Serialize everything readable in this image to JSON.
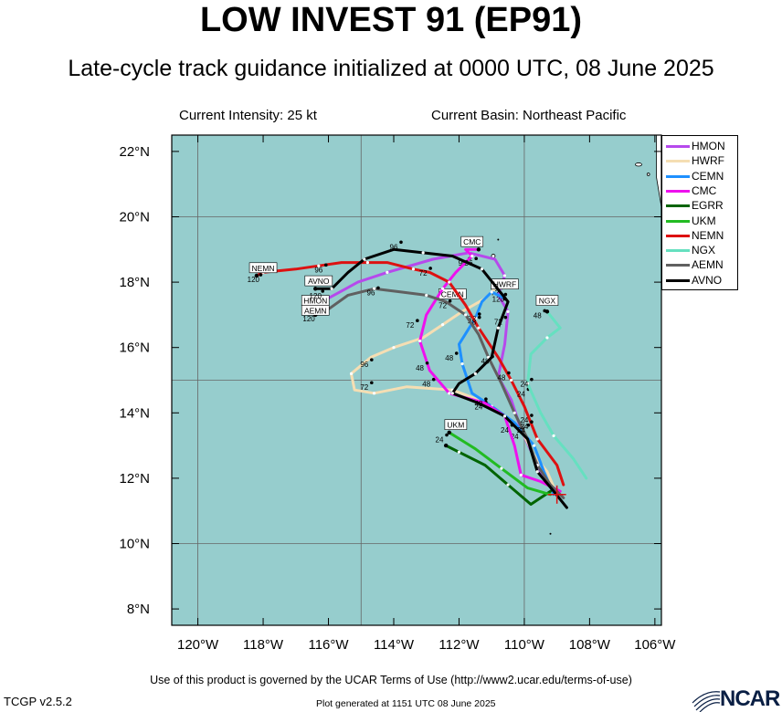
{
  "header": {
    "title": "LOW INVEST 91 (EP91)",
    "subtitle": "Late-cycle track guidance initialized at 0000 UTC, 08 June 2025",
    "current_intensity": "Current Intensity: 25 kt",
    "current_basin": "Current Basin: Northeast Pacific"
  },
  "footer": {
    "terms": "Use of this product is governed by the UCAR Terms of Use (http://www2.ucar.edu/terms-of-use)",
    "version": "TCGP v2.5.2",
    "generated": "Plot generated at 1151 UTC   08 June 2025",
    "logo_text": "NCAR"
  },
  "colors": {
    "ocean": "#96cdcd",
    "land": "#ffffff",
    "grid": "#666666"
  },
  "map": {
    "lon_range": [
      -120.8,
      -105.8
    ],
    "lat_range": [
      7.5,
      22.5
    ],
    "lon_ticks": [
      -120,
      -118,
      -116,
      -114,
      -112,
      -110,
      -108,
      -106
    ],
    "lat_ticks": [
      8,
      10,
      12,
      14,
      16,
      18,
      20,
      22
    ],
    "lon_tick_labels": [
      "120°W",
      "118°W",
      "116°W",
      "114°W",
      "112°W",
      "110°W",
      "108°W",
      "106°W"
    ],
    "lat_tick_labels": [
      "8°N",
      "10°N",
      "12°N",
      "14°N",
      "16°N",
      "18°N",
      "20°N",
      "22°N"
    ],
    "grid_lons": [
      -120,
      -115,
      -110
    ],
    "grid_lats": [
      10,
      15,
      20
    ],
    "initial_position": [
      -109.0,
      11.5
    ]
  },
  "legend": [
    {
      "name": "HMON",
      "color": "#b649ec"
    },
    {
      "name": "HWRF",
      "color": "#f5deb3"
    },
    {
      "name": "CEMN",
      "color": "#1e90ff"
    },
    {
      "name": "CMC",
      "color": "#ee11ee"
    },
    {
      "name": "EGRR",
      "color": "#006400"
    },
    {
      "name": "UKM",
      "color": "#22bb22"
    },
    {
      "name": "NEMN",
      "color": "#dd1111"
    },
    {
      "name": "NGX",
      "color": "#66e0c0"
    },
    {
      "name": "AEMN",
      "color": "#606060"
    },
    {
      "name": "AVNO",
      "color": "#000000"
    }
  ],
  "tracks": [
    {
      "model": "HMON",
      "color": "#b649ec",
      "points": [
        [
          -109.0,
          11.5
        ],
        [
          -109.5,
          12.2
        ],
        [
          -110.1,
          13.5
        ],
        [
          -110.4,
          14.4
        ],
        [
          -110.8,
          15.1
        ],
        [
          -110.6,
          16.1
        ],
        [
          -110.5,
          17.1
        ],
        [
          -110.8,
          17.6
        ],
        [
          -110.6,
          18.2
        ],
        [
          -110.9,
          18.7
        ],
        [
          -111.7,
          18.9
        ],
        [
          -112.8,
          18.7
        ],
        [
          -114.2,
          18.3
        ],
        [
          -115.1,
          18.0
        ],
        [
          -116.2,
          17.4
        ],
        [
          -116.4,
          17.2
        ]
      ],
      "labels": [
        {
          "pos": [
            -110.0,
            13.7
          ],
          "text": "24"
        },
        {
          "pos": [
            -111.2,
            15.5
          ],
          "text": "48"
        },
        {
          "pos": [
            -110.9,
            17.6
          ],
          "text": "72"
        },
        {
          "pos": [
            -111.9,
            18.5
          ],
          "text": "96"
        }
      ],
      "tag": {
        "pos": [
          -116.4,
          17.4
        ],
        "text": "HMON"
      }
    },
    {
      "model": "HWRF",
      "color": "#f5deb3",
      "points": [
        [
          -109.0,
          11.5
        ],
        [
          -109.3,
          12.2
        ],
        [
          -109.7,
          12.7
        ],
        [
          -110.1,
          13.5
        ],
        [
          -110.6,
          13.9
        ],
        [
          -111.4,
          14.4
        ],
        [
          -112.2,
          14.7
        ],
        [
          -113.6,
          14.8
        ],
        [
          -114.6,
          14.6
        ],
        [
          -115.2,
          14.7
        ],
        [
          -115.3,
          15.2
        ],
        [
          -114.7,
          15.7
        ],
        [
          -114.0,
          16.0
        ],
        [
          -113.1,
          16.3
        ],
        [
          -112.5,
          16.7
        ],
        [
          -111.9,
          17.1
        ],
        [
          -111.2,
          17.5
        ],
        [
          -110.8,
          17.9
        ]
      ],
      "labels": [
        {
          "pos": [
            -110.3,
            13.2
          ],
          "text": "24"
        },
        {
          "pos": [
            -113.0,
            14.8
          ],
          "text": "48"
        },
        {
          "pos": [
            -114.9,
            14.7
          ],
          "text": "72"
        },
        {
          "pos": [
            -114.9,
            15.4
          ],
          "text": "96"
        },
        {
          "pos": [
            -110.8,
            17.4
          ],
          "text": "120"
        }
      ],
      "tag": {
        "pos": [
          -110.6,
          17.9
        ],
        "text": "HWRF"
      }
    },
    {
      "model": "CEMN",
      "color": "#1e90ff",
      "points": [
        [
          -109.1,
          11.5
        ],
        [
          -109.4,
          12.2
        ],
        [
          -109.7,
          13.0
        ],
        [
          -110.3,
          13.7
        ],
        [
          -111.0,
          14.2
        ],
        [
          -111.6,
          14.6
        ],
        [
          -111.9,
          15.5
        ],
        [
          -112.0,
          16.1
        ],
        [
          -111.5,
          16.9
        ],
        [
          -111.3,
          17.4
        ],
        [
          -111.0,
          17.7
        ],
        [
          -110.6,
          17.5
        ]
      ],
      "labels": [
        {
          "pos": [
            -111.4,
            14.1
          ],
          "text": "24"
        },
        {
          "pos": [
            -112.3,
            15.6
          ],
          "text": "48"
        },
        {
          "pos": [
            -111.6,
            16.8
          ],
          "text": "72"
        }
      ],
      "tag": {
        "pos": [
          -112.2,
          17.6
        ],
        "text": "CEMN"
      }
    },
    {
      "model": "CMC",
      "color": "#ee11ee",
      "points": [
        [
          -108.9,
          11.6
        ],
        [
          -109.5,
          11.9
        ],
        [
          -110.1,
          12.1
        ],
        [
          -110.3,
          13.0
        ],
        [
          -110.6,
          13.9
        ],
        [
          -111.2,
          14.3
        ],
        [
          -112.3,
          14.6
        ],
        [
          -112.9,
          15.3
        ],
        [
          -113.2,
          16.2
        ],
        [
          -113.0,
          17.0
        ],
        [
          -112.5,
          17.8
        ],
        [
          -112.1,
          18.3
        ],
        [
          -111.6,
          18.8
        ],
        [
          -111.8,
          19.0
        ],
        [
          -111.4,
          19.0
        ]
      ],
      "labels": [
        {
          "pos": [
            -110.6,
            13.4
          ],
          "text": "24"
        },
        {
          "pos": [
            -113.2,
            15.3
          ],
          "text": "48"
        },
        {
          "pos": [
            -113.5,
            16.6
          ],
          "text": "72"
        },
        {
          "pos": [
            -111.7,
            18.5
          ],
          "text": "96"
        }
      ],
      "tag": {
        "pos": [
          -111.6,
          19.2
        ],
        "text": "CMC"
      }
    },
    {
      "model": "EGRR",
      "color": "#006400",
      "points": [
        [
          -109.2,
          11.6
        ],
        [
          -109.8,
          11.2
        ],
        [
          -110.5,
          11.8
        ],
        [
          -111.2,
          12.4
        ],
        [
          -112.0,
          12.8
        ],
        [
          -112.4,
          13.0
        ]
      ],
      "labels": [],
      "tag": null
    },
    {
      "model": "UKM",
      "color": "#22bb22",
      "points": [
        [
          -109.2,
          11.5
        ],
        [
          -109.9,
          11.7
        ],
        [
          -110.7,
          12.3
        ],
        [
          -111.5,
          12.9
        ],
        [
          -112.3,
          13.4
        ]
      ],
      "labels": [
        {
          "pos": [
            -112.6,
            13.1
          ],
          "text": "24"
        }
      ],
      "tag": {
        "pos": [
          -112.1,
          13.6
        ],
        "text": "UKM"
      }
    },
    {
      "model": "NEMN",
      "color": "#dd1111",
      "points": [
        [
          -108.8,
          11.8
        ],
        [
          -109.0,
          12.4
        ],
        [
          -109.6,
          13.2
        ],
        [
          -110.0,
          14.2
        ],
        [
          -110.4,
          15.0
        ],
        [
          -110.8,
          15.7
        ],
        [
          -111.4,
          16.6
        ],
        [
          -111.8,
          17.3
        ],
        [
          -112.3,
          18.0
        ],
        [
          -112.9,
          18.3
        ],
        [
          -113.4,
          18.4
        ],
        [
          -114.2,
          18.6
        ],
        [
          -114.8,
          18.6
        ],
        [
          -115.6,
          18.6
        ],
        [
          -116.3,
          18.5
        ],
        [
          -117.0,
          18.4
        ],
        [
          -118.0,
          18.3
        ],
        [
          -118.2,
          18.2
        ]
      ],
      "labels": [
        {
          "pos": [
            -110.1,
            14.5
          ],
          "text": "24"
        },
        {
          "pos": [
            -111.6,
            16.7
          ],
          "text": "48"
        },
        {
          "pos": [
            -113.1,
            18.2
          ],
          "text": "72"
        },
        {
          "pos": [
            -116.3,
            18.3
          ],
          "text": "96"
        },
        {
          "pos": [
            -118.3,
            18.0
          ],
          "text": "120"
        }
      ],
      "tag": {
        "pos": [
          -118.0,
          18.4
        ],
        "text": "NEMN"
      }
    },
    {
      "model": "NGX",
      "color": "#66e0c0",
      "points": [
        [
          -108.1,
          12.0
        ],
        [
          -108.5,
          12.6
        ],
        [
          -109.1,
          13.3
        ],
        [
          -109.5,
          14.0
        ],
        [
          -109.9,
          14.9
        ],
        [
          -109.8,
          15.8
        ],
        [
          -109.3,
          16.3
        ],
        [
          -108.9,
          16.6
        ],
        [
          -109.3,
          17.1
        ]
      ],
      "labels": [
        {
          "pos": [
            -110.0,
            14.8
          ],
          "text": "24"
        },
        {
          "pos": [
            -109.6,
            16.9
          ],
          "text": "48"
        }
      ],
      "tag": {
        "pos": [
          -109.3,
          17.4
        ],
        "text": "NGX"
      }
    },
    {
      "model": "AEMN",
      "color": "#606060",
      "points": [
        [
          -108.8,
          11.4
        ],
        [
          -109.2,
          11.8
        ],
        [
          -109.6,
          12.4
        ],
        [
          -109.9,
          13.2
        ],
        [
          -110.3,
          14.0
        ],
        [
          -110.7,
          14.9
        ],
        [
          -111.1,
          15.7
        ],
        [
          -111.4,
          16.4
        ],
        [
          -111.8,
          17.0
        ],
        [
          -112.4,
          17.4
        ],
        [
          -113.0,
          17.6
        ],
        [
          -113.8,
          17.7
        ],
        [
          -114.6,
          17.8
        ],
        [
          -115.4,
          17.6
        ],
        [
          -116.1,
          17.1
        ],
        [
          -116.4,
          17.0
        ]
      ],
      "labels": [
        {
          "pos": [
            -110.0,
            13.5
          ],
          "text": "24"
        },
        {
          "pos": [
            -110.7,
            15.0
          ],
          "text": "48"
        },
        {
          "pos": [
            -112.5,
            17.2
          ],
          "text": "72"
        },
        {
          "pos": [
            -114.7,
            17.6
          ],
          "text": "96"
        },
        {
          "pos": [
            -116.6,
            16.8
          ],
          "text": "120"
        }
      ],
      "tag": {
        "pos": [
          -116.4,
          17.1
        ],
        "text": "AEMN"
      }
    },
    {
      "model": "AVNO",
      "color": "#000000",
      "points": [
        [
          -108.7,
          11.1
        ],
        [
          -109.1,
          11.6
        ],
        [
          -109.6,
          12.2
        ],
        [
          -109.9,
          13.2
        ],
        [
          -110.6,
          13.9
        ],
        [
          -111.4,
          14.3
        ],
        [
          -112.2,
          14.6
        ],
        [
          -112.0,
          14.9
        ],
        [
          -111.5,
          15.2
        ],
        [
          -111.0,
          15.7
        ],
        [
          -110.8,
          16.6
        ],
        [
          -110.5,
          17.4
        ],
        [
          -111.3,
          18.4
        ],
        [
          -112.2,
          18.8
        ],
        [
          -113.1,
          18.9
        ],
        [
          -114.0,
          19.0
        ],
        [
          -114.9,
          18.7
        ],
        [
          -115.4,
          18.3
        ],
        [
          -115.9,
          17.8
        ],
        [
          -116.4,
          17.8
        ]
      ],
      "labels": [
        {
          "pos": [
            -110.1,
            13.4
          ],
          "text": "24"
        },
        {
          "pos": [
            -111.4,
            14.2
          ],
          "text": "48"
        },
        {
          "pos": [
            -110.8,
            16.7
          ],
          "text": "72"
        },
        {
          "pos": [
            -114.0,
            19.0
          ],
          "text": "96"
        },
        {
          "pos": [
            -116.4,
            17.5
          ],
          "text": "120"
        }
      ],
      "tag": {
        "pos": [
          -116.3,
          18.0
        ],
        "text": "AVNO"
      }
    }
  ]
}
